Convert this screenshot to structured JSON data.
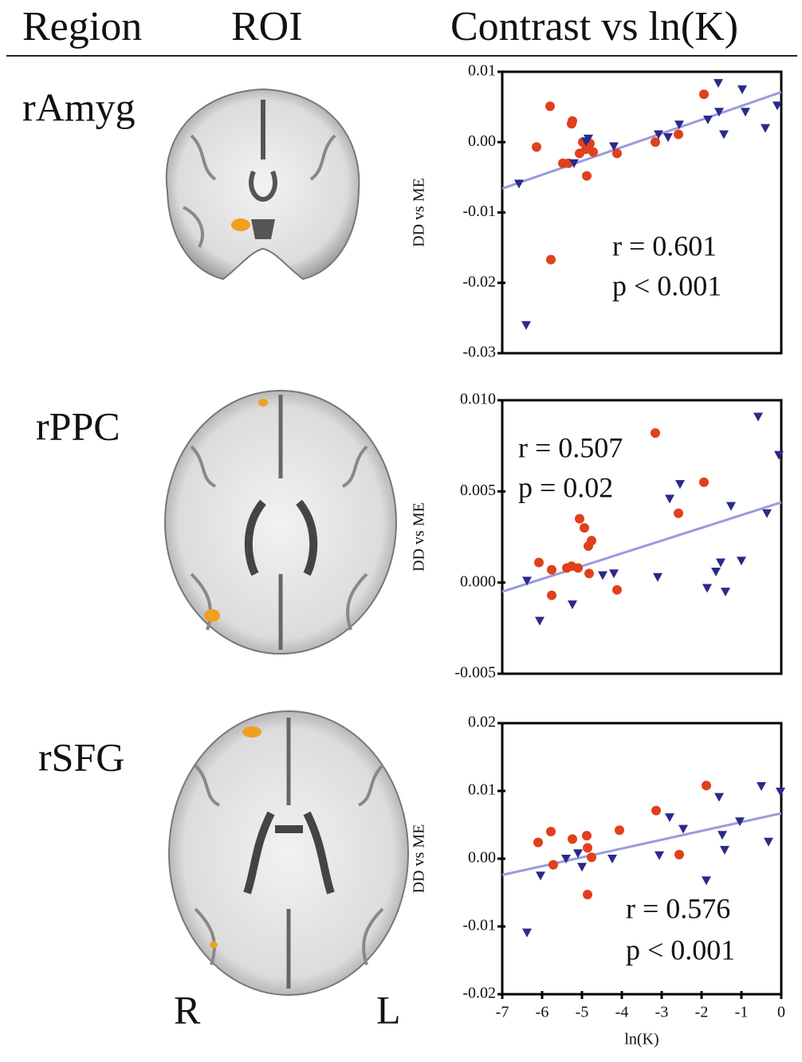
{
  "header": {
    "region": "Region",
    "roi": "ROI",
    "contrast": "Contrast vs ln(K)"
  },
  "regions": [
    "rAmyg",
    "rPPC",
    "rSFG"
  ],
  "orientation": {
    "right": "R",
    "left": "L"
  },
  "chart_data": [
    {
      "type": "scatter",
      "ylabel": "DD vs ME",
      "annotations": [
        "r = 0.601",
        "p < 0.001"
      ],
      "xlim": [
        -7,
        0
      ],
      "ylim": [
        -0.03,
        0.01
      ],
      "yticks": [
        {
          "value": 0.01,
          "label": "0.01"
        },
        {
          "value": 0,
          "label": "0.00"
        },
        {
          "value": -0.01,
          "label": "-0.01"
        },
        {
          "value": -0.02,
          "label": "-0.02"
        },
        {
          "value": -0.03,
          "label": "-0.03"
        }
      ],
      "series": [
        {
          "color": "#e0401c",
          "marker": "circle",
          "x": [
            -6.14,
            -5.8,
            -5.24,
            -5.26,
            -5.78,
            -5.48,
            -5.34,
            -5.06,
            -4.98,
            -4.88,
            -4.8,
            -4.9,
            -4.72,
            -4.12,
            -3.16,
            -2.58,
            -1.94
          ],
          "values": [
            -0.0007,
            0.0051,
            0.003,
            0.0026,
            -0.0167,
            -0.003,
            -0.003,
            -0.0016,
            0,
            -0.0048,
            -0.0002,
            -0.001,
            -0.0014,
            -0.0016,
            0,
            0.0011,
            0.0068
          ]
        },
        {
          "color": "#2a2a8a",
          "marker": "triangle",
          "x": [
            -6.58,
            -6.4,
            -5.2,
            -4.9,
            -4.84,
            -4.2,
            -3.08,
            -2.84,
            -2.56,
            -1.84,
            -1.58,
            -1.44,
            -1.56,
            -0.98,
            -0.9,
            -0.4,
            -0.1
          ],
          "values": [
            -0.0059,
            -0.026,
            -0.003,
            0.0001,
            0.0005,
            -0.0006,
            0.0011,
            0.0007,
            0.0025,
            0.0032,
            0.0084,
            0.0011,
            0.0043,
            0.0075,
            0.0043,
            0.002,
            0.0052
          ]
        }
      ],
      "fit": {
        "color": "#9a9ae0",
        "x": [
          -7,
          0
        ],
        "y": [
          -0.0066,
          0.0071
        ]
      }
    },
    {
      "type": "scatter",
      "ylabel": "DD vs ME",
      "annotations": [
        "r = 0.507",
        "p = 0.02"
      ],
      "xlim": [
        -7,
        0
      ],
      "ylim": [
        -0.005,
        0.01
      ],
      "yticks": [
        {
          "value": 0.01,
          "label": "0.010"
        },
        {
          "value": 0.005,
          "label": "0.005"
        },
        {
          "value": 0,
          "label": "0.000"
        },
        {
          "value": -0.005,
          "label": "-0.005"
        }
      ],
      "series": [
        {
          "color": "#e0401c",
          "marker": "circle",
          "x": [
            -6.08,
            -5.76,
            -5.76,
            -5.38,
            -5.26,
            -5.1,
            -5.06,
            -4.94,
            -4.84,
            -4.76,
            -4.82,
            -4.12,
            -3.16,
            -2.58,
            -1.94
          ],
          "values": [
            0.0011,
            -0.0007,
            0.0007,
            0.0008,
            0.0009,
            0.0008,
            0.0035,
            0.003,
            0.002,
            0.0023,
            0.0005,
            -0.0004,
            0.0082,
            0.0038,
            0.0055
          ]
        },
        {
          "color": "#2a2a8a",
          "marker": "triangle",
          "x": [
            -6.38,
            -6.06,
            -5.24,
            -4.48,
            -4.2,
            -3.1,
            -2.8,
            -2.54,
            -1.86,
            -1.64,
            -1.52,
            -1.4,
            -1.26,
            -1.0,
            -0.58,
            -0.36,
            -0.06
          ],
          "values": [
            0.0001,
            -0.0021,
            -0.0012,
            0.0004,
            0.0005,
            0.0003,
            0.0046,
            0.0054,
            -0.0003,
            0.0006,
            0.0011,
            -0.0005,
            0.0042,
            0.0012,
            0.0091,
            0.0038,
            0.007
          ]
        }
      ],
      "fit": {
        "color": "#9a9ae0",
        "x": [
          -7,
          0
        ],
        "y": [
          -0.0005,
          0.0044
        ]
      }
    },
    {
      "type": "scatter",
      "ylabel": "DD vs ME",
      "xlabel": "ln(K)",
      "annotations": [
        "r = 0.576",
        "p < 0.001"
      ],
      "xlim": [
        -7,
        0
      ],
      "ylim": [
        -0.02,
        0.02
      ],
      "xticks": [
        -7,
        -6,
        -5,
        -4,
        -3,
        -2,
        -1,
        0
      ],
      "yticks": [
        {
          "value": 0.02,
          "label": "0.02"
        },
        {
          "value": 0.01,
          "label": "0.01"
        },
        {
          "value": 0,
          "label": "0.00"
        },
        {
          "value": -0.01,
          "label": "-0.01"
        },
        {
          "value": -0.02,
          "label": "-0.02"
        }
      ],
      "series": [
        {
          "color": "#e0401c",
          "marker": "circle",
          "x": [
            -6.1,
            -5.78,
            -5.72,
            -5.24,
            -4.88,
            -4.86,
            -4.86,
            -4.76,
            -4.06,
            -3.14,
            -2.56,
            -1.88
          ],
          "values": [
            0.0024,
            0.004,
            -0.0009,
            0.0029,
            0.0034,
            0.0016,
            -0.0053,
            0.0002,
            0.0042,
            0.0071,
            0.0006,
            0.0108
          ]
        },
        {
          "color": "#2a2a8a",
          "marker": "triangle",
          "x": [
            -6.38,
            -6.04,
            -5.4,
            -5.1,
            -5.0,
            -4.24,
            -3.06,
            -2.8,
            -2.46,
            -1.88,
            -1.56,
            -1.48,
            -1.42,
            -1.04,
            -0.5,
            -0.32,
            -0.02
          ],
          "values": [
            -0.0109,
            -0.0025,
            0,
            0.0008,
            -0.0012,
            0,
            0.0005,
            0.0061,
            0.0044,
            -0.0032,
            0.0091,
            0.0035,
            0.0013,
            0.0055,
            0.0107,
            0.0025,
            0.0099
          ]
        }
      ],
      "fit": {
        "color": "#9a9ae0",
        "x": [
          -7,
          0
        ],
        "y": [
          -0.0024,
          0.0067
        ]
      }
    }
  ]
}
